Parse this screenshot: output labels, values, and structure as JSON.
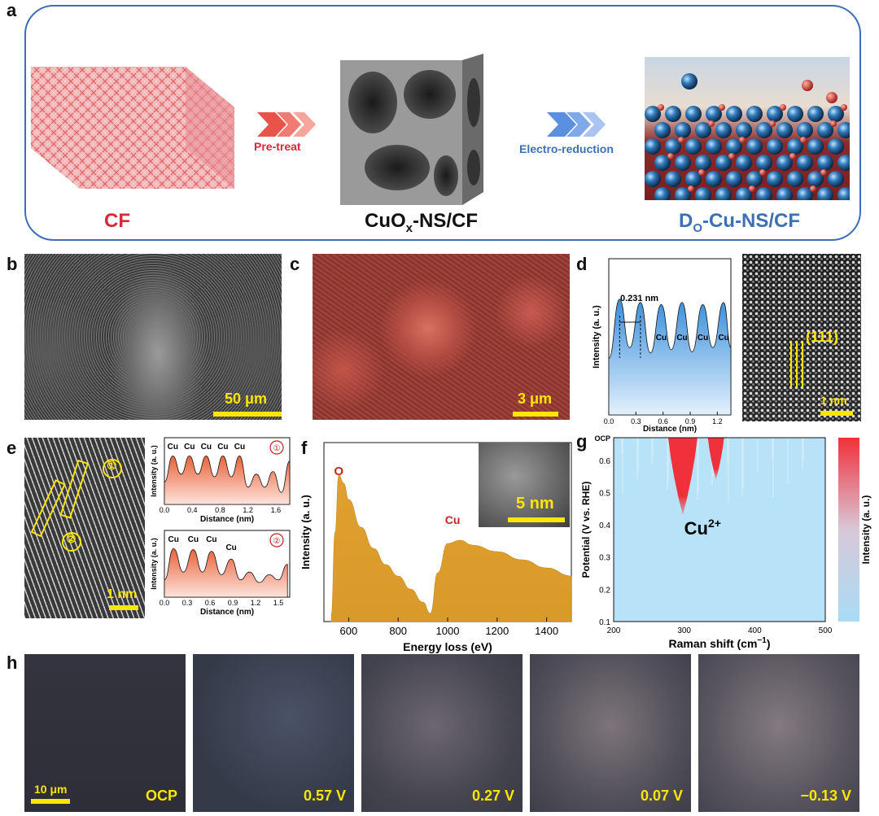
{
  "panels": {
    "a": {
      "letter": "a",
      "cf_label": "CF",
      "pretreat_label": "Pre-treat",
      "cuox_label_main": "CuO",
      "cuox_label_sub": "x",
      "cuox_label_tail": "-NS/CF",
      "electro_label": "Electro-reduction",
      "do_label_main": "D",
      "do_label_sub": "O",
      "do_label_tail": "-Cu-NS/CF",
      "colors": {
        "cf": "#d8293a",
        "do": "#3d6fb7",
        "pretreat_arrow": "#e8544a",
        "electro_arrow": "#5b8fe0"
      }
    },
    "b": {
      "letter": "b",
      "scale": "50 μm"
    },
    "c": {
      "letter": "c",
      "scale": "3 μm"
    },
    "d": {
      "letter": "d",
      "spacing": "0.231 nm",
      "ylabel": "Intensity (a. u.)",
      "xlabel": "Distance (nm)",
      "peak_labels": [
        "Cu",
        "Cu",
        "Cu",
        "Cu"
      ],
      "plane": "(111)",
      "scale": "1 nm",
      "xticks": [
        "0.0",
        "0.3",
        "0.6",
        "0.9",
        "1.2"
      ]
    },
    "e": {
      "letter": "e",
      "scale": "1 nm",
      "marker1": "①",
      "marker2": "②",
      "ylabel": "Intensity (a. u.)",
      "xlabel": "Distance (nm)",
      "top_peaks": [
        "Cu",
        "Cu",
        "Cu",
        "Cu",
        "Cu"
      ],
      "bottom_peaks": [
        "Cu",
        "Cu",
        "Cu",
        "Cu"
      ],
      "top_xticks": [
        "0.0",
        "0.4",
        "0.8",
        "1.2",
        "1.6"
      ],
      "bottom_xticks": [
        "0.0",
        "0.3",
        "0.6",
        "0.9",
        "1.2",
        "1.5"
      ]
    },
    "f": {
      "letter": "f",
      "ylabel": "Intensity (a. u.)",
      "xlabel": "Energy loss (eV)",
      "peak_o": "O",
      "peak_cu": "Cu",
      "inset_scale": "5 nm",
      "xticks": [
        "600",
        "800",
        "1000",
        "1200",
        "1400"
      ]
    },
    "g": {
      "letter": "g",
      "ylabel": "Potential (V vs. RHE)",
      "xlabel_main": "Raman shift (cm",
      "xlabel_sup": "−1",
      "xlabel_tail": ")",
      "ocp_tick": "OCP",
      "annotation_main": "Cu",
      "annotation_sup": "2+",
      "colorbar_label": "Intensity (a. u.)",
      "yticks": [
        "0.6",
        "0.5",
        "0.4",
        "0.3",
        "0.2",
        "0.1"
      ],
      "xticks": [
        "200",
        "300",
        "400",
        "500"
      ]
    },
    "h": {
      "letter": "h",
      "scale": "10 μm",
      "frames": [
        "OCP",
        "0.57 V",
        "0.27 V",
        "0.07 V",
        "−0.13 V"
      ]
    }
  },
  "chart_data": [
    {
      "type": "line",
      "panel": "d",
      "xlabel": "Distance (nm)",
      "ylabel": "Intensity (a. u.)",
      "x": [
        0.0,
        0.12,
        0.23,
        0.35,
        0.46,
        0.58,
        0.69,
        0.81,
        0.92,
        1.04,
        1.15,
        1.27,
        1.35
      ],
      "values": [
        0.3,
        0.85,
        0.4,
        0.82,
        0.35,
        0.8,
        0.38,
        0.82,
        0.36,
        0.8,
        0.4,
        0.82,
        0.4
      ],
      "xlim": [
        0.0,
        1.35
      ]
    },
    {
      "type": "line",
      "panel": "e-1",
      "xlabel": "Distance (nm)",
      "ylabel": "Intensity (a. u.)",
      "x": [
        0.0,
        0.12,
        0.24,
        0.36,
        0.48,
        0.6,
        0.72,
        0.84,
        0.96,
        1.08,
        1.2,
        1.32,
        1.44,
        1.56,
        1.68,
        1.8
      ],
      "values": [
        0.4,
        0.9,
        0.55,
        0.9,
        0.55,
        0.9,
        0.5,
        0.9,
        0.5,
        0.9,
        0.3,
        0.55,
        0.3,
        0.6,
        0.2,
        0.8
      ],
      "xlim": [
        0.0,
        1.8
      ]
    },
    {
      "type": "line",
      "panel": "e-2",
      "xlabel": "Distance (nm)",
      "ylabel": "Intensity (a. u.)",
      "x": [
        0.0,
        0.12,
        0.25,
        0.38,
        0.5,
        0.62,
        0.75,
        0.88,
        1.0,
        1.12,
        1.25,
        1.38,
        1.5,
        1.62
      ],
      "values": [
        0.3,
        0.9,
        0.45,
        0.88,
        0.45,
        0.85,
        0.4,
        0.7,
        0.3,
        0.45,
        0.25,
        0.4,
        0.3,
        0.6
      ],
      "xlim": [
        0.0,
        1.65
      ]
    },
    {
      "type": "area",
      "panel": "f",
      "xlabel": "Energy loss (eV)",
      "ylabel": "Intensity (a. u.)",
      "x": [
        530,
        545,
        560,
        580,
        600,
        650,
        700,
        750,
        800,
        850,
        900,
        930,
        960,
        1000,
        1050,
        1100,
        1200,
        1300,
        1400,
        1500
      ],
      "values": [
        0.05,
        0.55,
        0.9,
        0.85,
        0.75,
        0.58,
        0.45,
        0.35,
        0.28,
        0.2,
        0.12,
        0.05,
        0.3,
        0.48,
        0.5,
        0.47,
        0.43,
        0.38,
        0.33,
        0.28
      ],
      "xlim": [
        500,
        1500
      ]
    },
    {
      "type": "heatmap",
      "panel": "g",
      "xlabel": "Raman shift (cm−1)",
      "ylabel": "Potential (V vs. RHE)",
      "xlim": [
        200,
        500
      ],
      "ylim": [
        0.1,
        0.67
      ],
      "hotspots": [
        {
          "x": 298,
          "y_from": 0.43,
          "y_to": 0.67
        },
        {
          "x": 345,
          "y_from": 0.54,
          "y_to": 0.67
        }
      ]
    }
  ]
}
